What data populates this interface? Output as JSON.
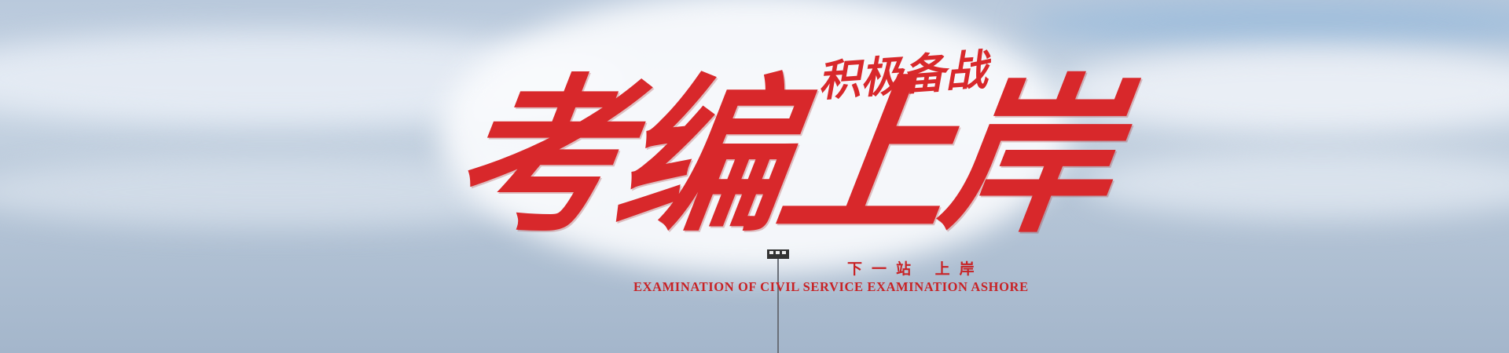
{
  "banner": {
    "title": "考编上岸",
    "slogan": "积极备战",
    "tagline": "下一站 上岸",
    "subtitle": "EXAMINATION OF CIVIL SERVICE EXAMINATION ASHORE"
  }
}
